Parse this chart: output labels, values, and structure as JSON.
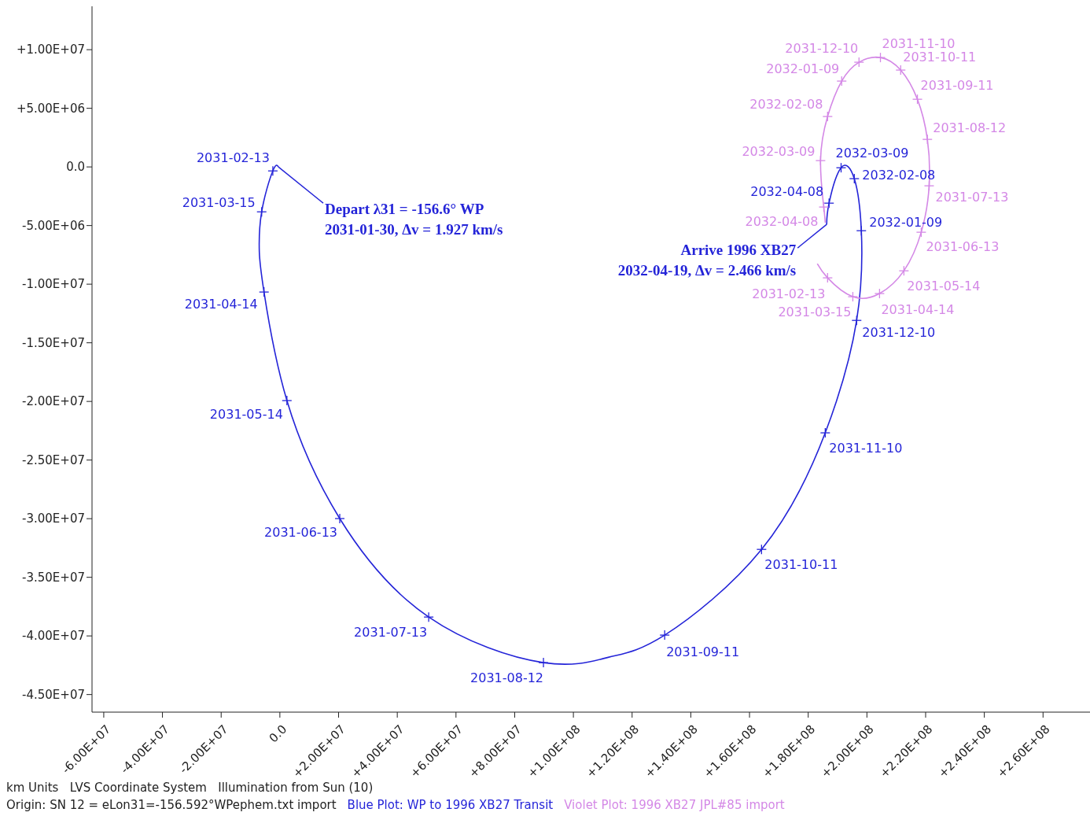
{
  "chart_data": {
    "type": "line",
    "marker": "cross",
    "legend": "bottom",
    "xlim": [
      -64000000.0,
      276000000.0
    ],
    "ylim": [
      -46500000.0,
      13700000.0
    ],
    "xticks": [
      {
        "value": -60000000.0,
        "label": "-6.00E+07"
      },
      {
        "value": -40000000.0,
        "label": "-4.00E+07"
      },
      {
        "value": -20000000.0,
        "label": "-2.00E+07"
      },
      {
        "value": 0,
        "label": "0.0"
      },
      {
        "value": 20000000.0,
        "label": "+2.00E+07"
      },
      {
        "value": 40000000.0,
        "label": "+4.00E+07"
      },
      {
        "value": 60000000.0,
        "label": "+6.00E+07"
      },
      {
        "value": 80000000.0,
        "label": "+8.00E+07"
      },
      {
        "value": 100000000.0,
        "label": "+1.00E+08"
      },
      {
        "value": 120000000.0,
        "label": "+1.20E+08"
      },
      {
        "value": 140000000.0,
        "label": "+1.40E+08"
      },
      {
        "value": 160000000.0,
        "label": "+1.60E+08"
      },
      {
        "value": 180000000.0,
        "label": "+1.80E+08"
      },
      {
        "value": 200000000.0,
        "label": "+2.00E+08"
      },
      {
        "value": 220000000.0,
        "label": "+2.20E+08"
      },
      {
        "value": 240000000.0,
        "label": "+2.40E+08"
      },
      {
        "value": 260000000.0,
        "label": "+2.60E+08"
      }
    ],
    "yticks": [
      {
        "value": 10000000.0,
        "label": "+1.00E+07"
      },
      {
        "value": 5000000.0,
        "label": "+5.00E+06"
      },
      {
        "value": 0,
        "label": "0.0"
      },
      {
        "value": -5000000.0,
        "label": "-5.00E+06"
      },
      {
        "value": -10000000.0,
        "label": "-1.00E+07"
      },
      {
        "value": -15000000.0,
        "label": "-1.50E+07"
      },
      {
        "value": -20000000.0,
        "label": "-2.00E+07"
      },
      {
        "value": -25000000.0,
        "label": "-2.50E+07"
      },
      {
        "value": -30000000.0,
        "label": "-3.00E+07"
      },
      {
        "value": -35000000.0,
        "label": "-3.50E+07"
      },
      {
        "value": -40000000.0,
        "label": "-4.00E+07"
      },
      {
        "value": -45000000.0,
        "label": "-4.50E+07"
      }
    ],
    "series": [
      {
        "name": "Blue Plot: WP to 1996 XB27 Transit",
        "color": "#2424d8",
        "x": [
          -500000.0,
          -2400000.0,
          -6200000.0,
          -7000000.0,
          -5400000.0,
          2400000.0,
          20400000.0,
          50700000.0,
          89800000.0,
          112100000.0,
          131100000.0,
          164100000.0,
          185800000.0,
          196500000.0,
          198100000.0,
          195700000.0,
          191200000.0,
          187100000.0,
          186300000.0
        ],
        "values": [
          0,
          -340000.0,
          -3830000.0,
          -7250000.0,
          -10670000.0,
          -19930000.0,
          -29990000.0,
          -38390000.0,
          -42280000.0,
          -41810000.0,
          -39930000.0,
          -32620000.0,
          -22680000.0,
          -13090000.0,
          -5440000.0,
          -1000000.0,
          -70000.0,
          -3090000.0,
          -4900000.0
        ],
        "value_labels": [
          null,
          "2031-02-13",
          "2031-03-15",
          null,
          "2031-04-14",
          "2031-05-14",
          "2031-06-13",
          "2031-07-13",
          "2031-08-12",
          null,
          "2031-09-11",
          "2031-10-11",
          "2031-11-10",
          "2031-12-10",
          "2032-01-09",
          "2032-02-08",
          "2032-03-09",
          "2032-04-08",
          null
        ]
      },
      {
        "name": "Violet Plot: 1996 XB27 JPL#85 import",
        "color": "#d488e6",
        "x": [
          183100000.0,
          186600000.0,
          195200000.0,
          204300000.0,
          212600000.0,
          218500000.0,
          221200000.0,
          220600000.0,
          217200000.0,
          211500000.0,
          204600000.0,
          197300000.0,
          191400000.0,
          186600000.0,
          184200000.0,
          185300000.0,
          185800000.0
        ],
        "values": [
          -8260000.0,
          -9460000.0,
          -11070000.0,
          -10800000.0,
          -8860000.0,
          -5570000.0,
          -1610000.0,
          2350000.0,
          5770000.0,
          8260000.0,
          9330000.0,
          8930000.0,
          7320000.0,
          4300000.0,
          540000.0,
          -3420000.0,
          -4760000.0
        ],
        "value_labels": [
          null,
          "2031-02-13",
          "2031-03-15",
          "2031-04-14",
          "2031-05-14",
          "2031-06-13",
          "2031-07-13",
          "2031-08-12",
          "2031-09-11",
          "2031-10-11",
          "2031-11-10",
          "2031-12-10",
          "2032-01-09",
          "2032-02-08",
          "2032-03-09",
          "2032-04-08",
          null
        ]
      }
    ],
    "annotations": [
      {
        "text": "Depart λ31 = -156.6° WP\n2031-01-30, Δv = 1.927 km/s",
        "x": -500000.0,
        "y": 0
      },
      {
        "text": "Arrive 1996 XB27\n2032-04-19, Δv = 2.466 km/s",
        "x": 186300000.0,
        "y": -4900000.0
      },
      "km Units   LVS Coordinate System   Illumination from Sun (10)",
      "Origin: SN 12 = eLon31=-156.592°WPephem.txt import"
    ]
  }
}
